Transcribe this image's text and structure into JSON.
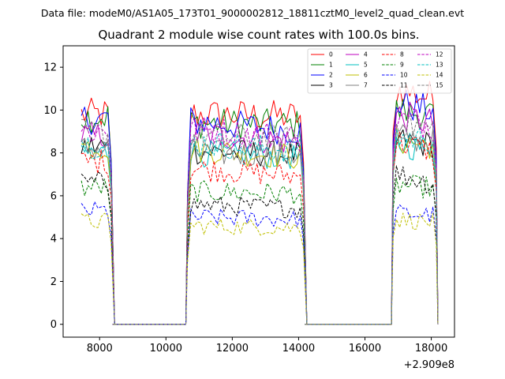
{
  "chart_data": {
    "type": "line",
    "suptitle": "Data file: modeM0/AS1A05_173T01_9000002812_18811cztM0_level2_quad_clean.evt",
    "title": "Quadrant 2 module wise count rates with 100.0s bins.",
    "x_offset_label": "+2.909e8",
    "xlim": [
      6900,
      18700
    ],
    "ylim": [
      -0.6,
      13.0
    ],
    "x_ticks": [
      8000,
      10000,
      12000,
      14000,
      16000,
      18000
    ],
    "y_ticks": [
      0,
      2,
      4,
      6,
      8,
      10,
      12
    ],
    "grid": false,
    "legend_position": "upper right",
    "legend_columns": 4,
    "gap_segments": [
      {
        "x": [
          8400,
          8500,
          10500,
          10600
        ],
        "y": [
          0,
          0,
          0,
          0
        ]
      },
      {
        "x": [
          14200,
          14300,
          16700,
          16800
        ],
        "y": [
          0,
          0,
          0,
          0
        ]
      }
    ],
    "segments": [
      {
        "start": 7450,
        "end": 8350,
        "drop_x": 8450
      },
      {
        "start": 10650,
        "end": 14150,
        "drop_x": 14250
      },
      {
        "start": 16850,
        "end": 18150,
        "drop_x": 18200
      }
    ],
    "series": [
      {
        "name": "0",
        "color": "#ff0000",
        "dash": "solid",
        "levels": [
          9.8,
          9.8,
          9.7,
          11.0
        ]
      },
      {
        "name": "1",
        "color": "#008000",
        "dash": "solid",
        "levels": [
          9.7,
          9.4,
          9.3,
          10.0
        ]
      },
      {
        "name": "2",
        "color": "#0000ff",
        "dash": "solid",
        "levels": [
          9.6,
          9.5,
          9.0,
          10.4
        ]
      },
      {
        "name": "3",
        "color": "#000000",
        "dash": "solid",
        "levels": [
          8.3,
          8.1,
          7.9,
          8.6
        ]
      },
      {
        "name": "4",
        "color": "#bf00bf",
        "dash": "solid",
        "levels": [
          8.8,
          8.9,
          8.5,
          9.8
        ]
      },
      {
        "name": "5",
        "color": "#00bfbf",
        "dash": "solid",
        "levels": [
          8.0,
          8.0,
          7.8,
          8.4
        ]
      },
      {
        "name": "6",
        "color": "#bfbf00",
        "dash": "solid",
        "levels": [
          8.3,
          8.2,
          7.8,
          8.6
        ]
      },
      {
        "name": "7",
        "color": "#808080",
        "dash": "solid",
        "levels": [
          8.2,
          8.0,
          7.9,
          8.8
        ]
      },
      {
        "name": "8",
        "color": "#ff0000",
        "dash": "dashed",
        "levels": [
          7.6,
          7.3,
          6.9,
          8.6
        ]
      },
      {
        "name": "9",
        "color": "#008000",
        "dash": "dashed",
        "levels": [
          6.4,
          6.2,
          6.1,
          6.5
        ]
      },
      {
        "name": "10",
        "color": "#0000ff",
        "dash": "dashed",
        "levels": [
          5.3,
          5.0,
          4.9,
          5.2
        ]
      },
      {
        "name": "11",
        "color": "#000000",
        "dash": "dashed",
        "levels": [
          6.6,
          5.6,
          5.4,
          7.1
        ]
      },
      {
        "name": "12",
        "color": "#bf00bf",
        "dash": "dashed",
        "levels": [
          9.0,
          9.1,
          8.7,
          9.6
        ]
      },
      {
        "name": "13",
        "color": "#00bfbf",
        "dash": "dashed",
        "levels": [
          8.4,
          8.5,
          8.1,
          8.8
        ]
      },
      {
        "name": "14",
        "color": "#bfbf00",
        "dash": "dashed",
        "levels": [
          4.8,
          4.6,
          4.5,
          4.9
        ]
      },
      {
        "name": "15",
        "color": "#808080",
        "dash": "dashed",
        "levels": [
          8.9,
          8.8,
          8.6,
          9.4
        ]
      }
    ]
  }
}
